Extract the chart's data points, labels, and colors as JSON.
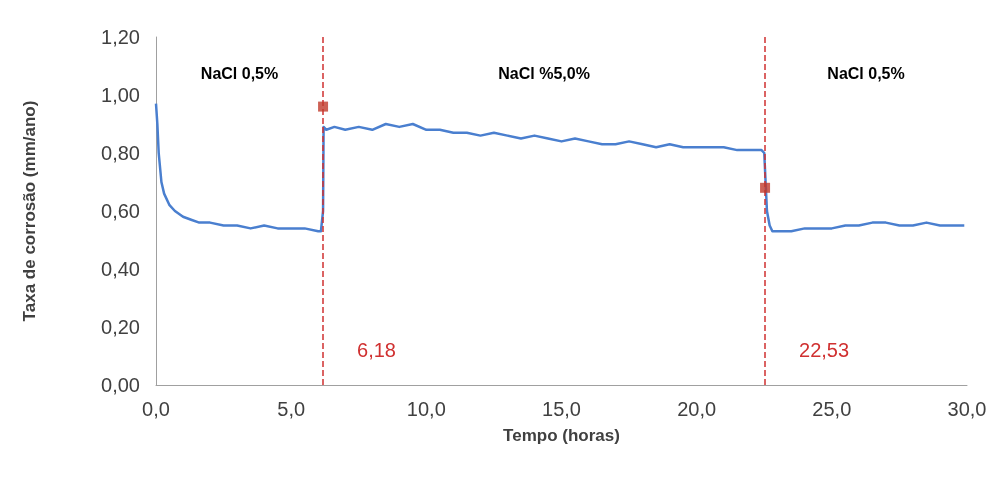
{
  "chart_data": {
    "type": "line",
    "xlabel": "Tempo (horas)",
    "ylabel": "Taxa de corrosão (mm/ano)",
    "series": [
      {
        "color": "#4a7fcf",
        "marker": "none",
        "x": [
          0,
          0.05,
          0.1,
          0.2,
          0.3,
          0.5,
          0.7,
          1.0,
          1.3,
          1.6,
          2.0,
          2.5,
          3.0,
          3.5,
          4.0,
          4.5,
          5.0,
          5.5,
          6.0,
          6.1,
          6.18,
          6.2,
          6.3,
          6.6,
          7,
          7.5,
          8,
          8.5,
          9,
          9.5,
          10,
          10.5,
          11,
          11.5,
          12,
          12.5,
          13,
          13.5,
          14,
          14.5,
          15,
          15.5,
          16,
          16.5,
          17,
          17.5,
          18,
          18.5,
          19,
          19.5,
          20,
          20.5,
          21,
          21.5,
          22,
          22.4,
          22.5,
          22.55,
          22.6,
          22.7,
          22.8,
          23,
          23.5,
          24,
          24.5,
          25,
          25.5,
          26,
          26.5,
          27,
          27.5,
          28,
          28.5,
          29,
          29.5,
          29.9
        ],
        "values": [
          0.97,
          0.9,
          0.8,
          0.7,
          0.66,
          0.62,
          0.6,
          0.58,
          0.57,
          0.56,
          0.56,
          0.55,
          0.55,
          0.54,
          0.55,
          0.54,
          0.54,
          0.54,
          0.53,
          0.53,
          0.6,
          0.89,
          0.88,
          0.89,
          0.88,
          0.89,
          0.88,
          0.9,
          0.89,
          0.9,
          0.88,
          0.88,
          0.87,
          0.87,
          0.86,
          0.87,
          0.86,
          0.85,
          0.86,
          0.85,
          0.84,
          0.85,
          0.84,
          0.83,
          0.83,
          0.84,
          0.83,
          0.82,
          0.83,
          0.82,
          0.82,
          0.82,
          0.82,
          0.81,
          0.81,
          0.81,
          0.8,
          0.7,
          0.6,
          0.55,
          0.53,
          0.53,
          0.53,
          0.54,
          0.54,
          0.54,
          0.55,
          0.55,
          0.56,
          0.56,
          0.55,
          0.55,
          0.56,
          0.55,
          0.55,
          0.55
        ]
      },
      {
        "type": "scatter",
        "color": "#c0392b",
        "marker": "square",
        "x": [
          6.18,
          22.53
        ],
        "values": [
          0.96,
          0.68
        ]
      }
    ],
    "xlim": [
      0,
      30
    ],
    "xticks": [
      {
        "value": 0,
        "label": "0,0"
      },
      {
        "value": 5,
        "label": "5,0"
      },
      {
        "value": 10,
        "label": "10,0"
      },
      {
        "value": 15,
        "label": "15,0"
      },
      {
        "value": 20,
        "label": "20,0"
      },
      {
        "value": 25,
        "label": "25,0"
      },
      {
        "value": 30,
        "label": "30,0"
      }
    ],
    "ylim": [
      0,
      1.2
    ],
    "yticks": [
      {
        "value": 0,
        "label": "0,00"
      },
      {
        "value": 0.2,
        "label": "0,20"
      },
      {
        "value": 0.4,
        "label": "0,40"
      },
      {
        "value": 0.6,
        "label": "0,60"
      },
      {
        "value": 0.8,
        "label": "0,80"
      },
      {
        "value": 1,
        "label": "1,00"
      },
      {
        "value": 1.2,
        "label": "1,20"
      }
    ],
    "ref_lines": [
      {
        "axis": "x",
        "value": 6.18,
        "label": "6,18",
        "color": "#d03030",
        "line_style": "dashed"
      },
      {
        "axis": "x",
        "value": 22.53,
        "label": "22,53",
        "color": "#d03030",
        "line_style": "dashed"
      }
    ],
    "annotations": [
      "NaCl 0,5%",
      "NaCl %5,0%",
      "NaCl 0,5%"
    ],
    "grid": false
  }
}
